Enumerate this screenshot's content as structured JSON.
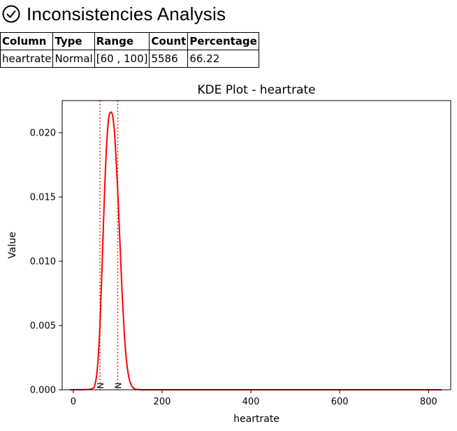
{
  "header": {
    "title": "Inconsistencies Analysis",
    "icon": "check-circle-icon"
  },
  "table": {
    "headers": [
      "Column",
      "Type",
      "Range",
      "Count",
      "Percentage"
    ],
    "rows": [
      [
        "heartrate",
        "Normal",
        "[60 , 100]",
        "5586",
        "66.22"
      ]
    ]
  },
  "chart_data": {
    "type": "line",
    "title": "KDE Plot - heartrate",
    "xlabel": "heartrate",
    "ylabel": "Value",
    "xlim": [
      -25,
      850
    ],
    "ylim": [
      0,
      0.0225
    ],
    "xticks": [
      0,
      200,
      400,
      600,
      800
    ],
    "xtick_labels": [
      "0",
      "200",
      "400",
      "600",
      "800"
    ],
    "yticks": [
      0.0,
      0.005,
      0.01,
      0.015,
      0.02
    ],
    "ytick_labels": [
      "0.000",
      "0.005",
      "0.010",
      "0.015",
      "0.020"
    ],
    "grid": false,
    "series": [
      {
        "color": "#ff0000",
        "x": [
          -8,
          40,
          50,
          55,
          60,
          65,
          70,
          75,
          80,
          85,
          88,
          90,
          93,
          95,
          100,
          105,
          110,
          115,
          120,
          125,
          130,
          135,
          140,
          150,
          160,
          180,
          200,
          400,
          600,
          830
        ],
        "y": [
          0,
          5e-05,
          0.0006,
          0.002,
          0.005,
          0.0098,
          0.015,
          0.019,
          0.0212,
          0.0216,
          0.0214,
          0.021,
          0.02,
          0.0188,
          0.0155,
          0.0115,
          0.0075,
          0.0043,
          0.0022,
          0.001,
          0.0004,
          0.00015,
          5e-05,
          1e-05,
          0,
          0,
          0,
          0,
          0,
          0
        ]
      }
    ],
    "vlines": [
      {
        "x": 60,
        "color": "#ff0000",
        "style": "dotted",
        "label": "N"
      },
      {
        "x": 100,
        "color": "#ff0000",
        "style": "dotted",
        "label": "N"
      }
    ]
  }
}
